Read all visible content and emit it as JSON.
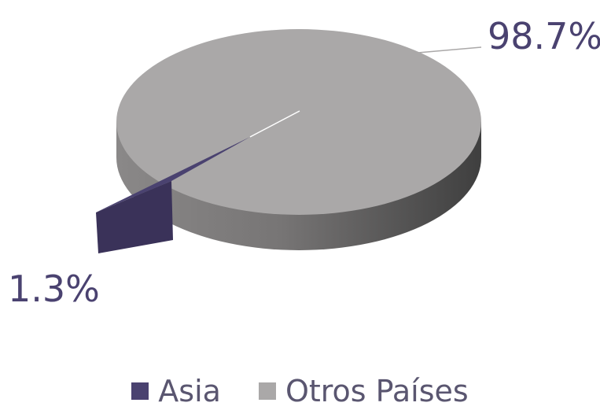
{
  "chart_data": {
    "type": "pie",
    "series": [
      {
        "name": "Asia",
        "value": 1.3,
        "label": "1.3%",
        "color": "#4a4270"
      },
      {
        "name": "Otros Países",
        "value": 98.7,
        "label": "98.7%",
        "color": "#aaa8a8"
      }
    ],
    "style": "3d-exploded",
    "legend_position": "bottom",
    "label_color": "#4a4270"
  }
}
